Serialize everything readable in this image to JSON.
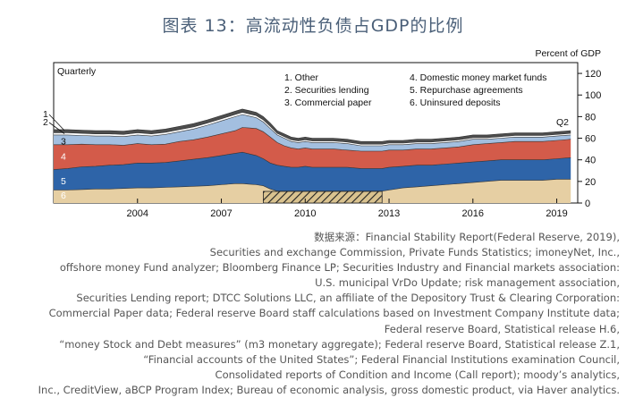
{
  "title": "图表 13：高流动性负债占GDP的比例",
  "chart_data": {
    "type": "area",
    "stacked": true,
    "title": "图表 13：高流动性负债占GDP的比例",
    "frequency_label": "Quarterly",
    "ylabel": "Percent of GDP",
    "ylim": [
      0,
      130
    ],
    "yticks": [
      0,
      20,
      40,
      60,
      80,
      100,
      120
    ],
    "xlim": [
      2001.0,
      2019.75
    ],
    "xticks": [
      2004,
      2007,
      2010,
      2013,
      2016,
      2019
    ],
    "last_point_label": "Q2",
    "legend": [
      "1. Other",
      "2. Securities lending",
      "3. Commercial paper",
      "4. Domestic money market funds",
      "5. Repurchase agreements",
      "6. Uninsured deposits"
    ],
    "series_numbers": [
      "1",
      "2",
      "3",
      "4",
      "5",
      "6"
    ],
    "shaded_periods": [
      [
        2008.5,
        2012.75
      ]
    ],
    "x": [
      2001.0,
      2001.5,
      2002.0,
      2002.5,
      2003.0,
      2003.5,
      2004.0,
      2004.5,
      2005.0,
      2005.5,
      2006.0,
      2006.5,
      2007.0,
      2007.5,
      2007.75,
      2008.0,
      2008.25,
      2008.5,
      2008.75,
      2009.0,
      2009.25,
      2009.5,
      2009.75,
      2010.0,
      2010.25,
      2010.5,
      2011.0,
      2011.5,
      2012.0,
      2012.5,
      2012.75,
      2013.0,
      2013.5,
      2014.0,
      2014.5,
      2015.0,
      2015.5,
      2016.0,
      2016.5,
      2017.0,
      2017.5,
      2018.0,
      2018.5,
      2019.0,
      2019.5
    ],
    "series": [
      {
        "name": "Uninsured deposits",
        "label": "6",
        "color": "#e6cfa3",
        "values": [
          12,
          12,
          12.5,
          13,
          13,
          13.5,
          14,
          14,
          14.5,
          15,
          15.5,
          16,
          17,
          18,
          18,
          17.5,
          17,
          16,
          13,
          11,
          11,
          11,
          11,
          11,
          11,
          11,
          11,
          11,
          11,
          11,
          11,
          12,
          14,
          15,
          16,
          17,
          18,
          19,
          20,
          21,
          21,
          21,
          21,
          22,
          22
        ]
      },
      {
        "name": "Repurchase agreements",
        "label": "5",
        "color": "#2e64a8",
        "values": [
          19,
          20,
          21,
          21,
          22,
          22,
          23,
          23,
          23,
          24,
          25,
          26,
          27,
          28,
          29,
          28,
          27,
          25,
          24,
          24,
          23,
          22,
          22,
          23,
          22,
          22,
          22,
          22,
          21,
          21,
          21,
          21,
          20,
          20,
          19,
          19,
          19,
          19,
          19,
          19,
          19,
          19,
          19,
          19,
          20
        ]
      },
      {
        "name": "Domestic money market funds",
        "label": "4",
        "color": "#d35b4a",
        "values": [
          23,
          22,
          21,
          20,
          19,
          18,
          18,
          17,
          17,
          18,
          18,
          19,
          20,
          21,
          23,
          24,
          25,
          25,
          24,
          21,
          19,
          18,
          17,
          17,
          17,
          17,
          17,
          16,
          16,
          16,
          16,
          16,
          15,
          15,
          15,
          15,
          15,
          16,
          16,
          16,
          17,
          17,
          17,
          17,
          17
        ]
      },
      {
        "name": "Commercial paper",
        "label": "3",
        "color": "#a3bfe0",
        "values": [
          9,
          9,
          8,
          8,
          8,
          8,
          8,
          8,
          9,
          9,
          10,
          11,
          12,
          13,
          12,
          11,
          10,
          9,
          8,
          7,
          7,
          6,
          6,
          6,
          6,
          6,
          6,
          6,
          5,
          5,
          5,
          5,
          5,
          5,
          5,
          5,
          5,
          5,
          4,
          4,
          4,
          4,
          4,
          4,
          4
        ]
      },
      {
        "name": "Securities lending",
        "label": "2",
        "color": "#ffffff",
        "values": [
          2,
          2,
          2,
          2,
          2,
          2,
          2,
          2,
          2,
          2,
          2,
          2,
          2,
          2,
          2,
          2,
          2,
          2,
          2,
          1.5,
          1.5,
          1.5,
          1.5,
          1.5,
          1.5,
          1.5,
          1.5,
          1.5,
          1.5,
          1.5,
          1.5,
          1.5,
          1.5,
          1.5,
          1.5,
          1.5,
          1.5,
          1.5,
          1.5,
          1.5,
          1.5,
          1.5,
          1.5,
          1.5,
          1.5
        ]
      },
      {
        "name": "Other",
        "label": "1",
        "color": "#4d4d4d",
        "values": [
          3,
          3,
          3,
          3,
          3,
          3,
          3,
          3,
          3,
          3,
          3,
          3,
          3,
          3,
          3,
          3,
          3,
          3,
          3,
          2.5,
          2.5,
          2.5,
          2.5,
          2.5,
          2.5,
          2.5,
          2.5,
          2.5,
          2.5,
          2.5,
          2.5,
          2.5,
          2.5,
          2.5,
          2.5,
          2.5,
          2.5,
          2.5,
          2.5,
          2.5,
          2.5,
          2.5,
          2.5,
          2.5,
          2.5
        ]
      }
    ]
  },
  "source": [
    "数据来源：Financial Stability Report(Federal Reserve, 2019),",
    "Securities and exchange Commission, Private Funds Statistics; imoneyNet, Inc.,",
    "offshore money Fund analyzer; Bloomberg Finance LP; Securities Industry and Financial markets association:",
    "U.S. municipal VrDo Update; risk management association,",
    "Securities Lending report; DTCC Solutions LLC, an affiliate of the Depository Trust & Clearing Corporation:",
    "Commercial Paper data; Federal reserve Board staff calculations based on Investment Company Institute data;",
    "Federal reserve Board, Statistical release H.6,",
    "“money Stock and Debt measures” (m3 monetary aggregate); Federal reserve Board, Statistical release Z.1,",
    "“Financial accounts of the United States”; Federal Financial Institutions examination Council,",
    "Consolidated reports of Condition and Income (Call report); moody’s analytics,",
    "Inc., CreditView, aBCP Program Index; Bureau of economic analysis, gross domestic product, via Haver analytics."
  ]
}
